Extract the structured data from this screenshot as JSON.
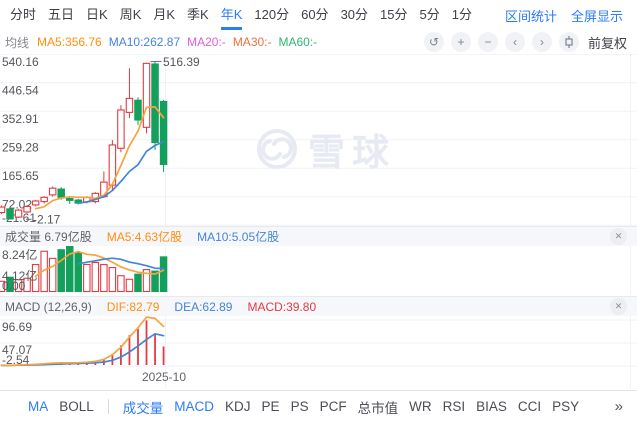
{
  "toolbar": {
    "periods": [
      "分时",
      "五日",
      "日K",
      "周K",
      "月K",
      "季K",
      "年K",
      "120分",
      "60分",
      "30分",
      "15分",
      "5分",
      "1分"
    ],
    "active_period": "年K",
    "links": [
      "区间统计",
      "全屏显示"
    ]
  },
  "legend": {
    "title": "均线",
    "items": [
      {
        "text": "MA5:356.76",
        "color": "#ff8e0e"
      },
      {
        "text": "MA10:262.87",
        "color": "#4485d6"
      },
      {
        "text": "MA20:-",
        "color": "#dc5edc"
      },
      {
        "text": "MA30:-",
        "color": "#f0703c"
      },
      {
        "text": "MA60:-",
        "color": "#2fb56e"
      }
    ],
    "controls": [
      {
        "name": "undo-icon",
        "glyph": "↺"
      },
      {
        "name": "zoom-in-icon",
        "glyph": "+"
      },
      {
        "name": "zoom-out-icon",
        "glyph": "−"
      },
      {
        "name": "pan-left-icon",
        "glyph": "‹"
      },
      {
        "name": "pan-right-icon",
        "glyph": "›"
      },
      {
        "name": "candle-style-icon",
        "glyph": "candle"
      }
    ],
    "adjust_label": "前复权"
  },
  "watermark": {
    "text": "雪球"
  },
  "icons": {
    "close": "✕"
  },
  "colors": {
    "up": "#e23b41",
    "down": "#12a05c",
    "ma5_line": "#f6a43e",
    "ma10_line": "#4485d6",
    "accent_blue": "#2b7cf7",
    "grid": "#f1f2f6",
    "axis_text": "#55565c"
  },
  "chart_data": [
    {
      "type": "candlestick",
      "period": "年K",
      "y_ticks": [
        "540.16",
        "446.54",
        "352.91",
        "259.28",
        "165.65",
        "72.02",
        "-21.61"
      ],
      "high_marker": "516.39",
      "low_marker": "-2.17",
      "candles": [
        {
          "open": 20,
          "close": 38,
          "high": 43,
          "low": 15
        },
        {
          "open": 32,
          "close": -1,
          "high": 36,
          "low": -2.17
        },
        {
          "open": 5,
          "close": 28,
          "high": 32,
          "low": 2
        },
        {
          "open": 22,
          "close": 40,
          "high": 45,
          "low": 18
        },
        {
          "open": 45,
          "close": 58,
          "high": 62,
          "low": 40
        },
        {
          "open": 56,
          "close": 70,
          "high": 74,
          "low": 50
        },
        {
          "open": 78,
          "close": 100,
          "high": 106,
          "low": 72
        },
        {
          "open": 97,
          "close": 70,
          "high": 104,
          "low": 62
        },
        {
          "open": 66,
          "close": 60,
          "high": 74,
          "low": 48
        },
        {
          "open": 61,
          "close": 51,
          "high": 65,
          "low": 46
        },
        {
          "open": 55,
          "close": 70,
          "high": 74,
          "low": 50
        },
        {
          "open": 56,
          "close": 83,
          "high": 87,
          "low": 50
        },
        {
          "open": 72,
          "close": 120,
          "high": 155,
          "low": 68
        },
        {
          "open": 110,
          "close": 242,
          "high": 258,
          "low": 94
        },
        {
          "open": 231,
          "close": 357,
          "high": 373,
          "low": 218
        },
        {
          "open": 349,
          "close": 395,
          "high": 494,
          "low": 330
        },
        {
          "open": 389,
          "close": 324,
          "high": 399,
          "low": 307
        },
        {
          "open": 300,
          "close": 510,
          "high": 512,
          "low": 280
        },
        {
          "open": 508,
          "close": 250,
          "high": 516.39,
          "low": 225
        },
        {
          "open": 385,
          "close": 178,
          "high": 390,
          "low": 153
        }
      ]
    },
    {
      "type": "bar",
      "header_items": [
        {
          "text": "成交量 6.79亿股",
          "color": "#62636a"
        },
        {
          "text": "MA5:4.63亿股",
          "color": "#ff8e0e"
        },
        {
          "text": "MA10:5.05亿股",
          "color": "#4485d6"
        }
      ],
      "y_ticks": [
        "8.24亿",
        "4.12亿",
        "0.00"
      ],
      "unit": "亿股",
      "values": [
        2.0,
        2.8,
        2.3,
        2.6,
        5.3,
        7.9,
        6.5,
        8.2,
        8.9,
        7.6,
        5.3,
        5.7,
        5.3,
        4.7,
        3.1,
        2.4,
        3.4,
        4.3,
        4.0,
        6.79
      ]
    },
    {
      "type": "macd",
      "header_items": [
        {
          "text": "MACD (12,26,9)",
          "color": "#62636a"
        },
        {
          "text": "DIF:82.79",
          "color": "#ff8e0e"
        },
        {
          "text": "DEA:62.89",
          "color": "#4485d6"
        },
        {
          "text": "MACD:39.80",
          "color": "#e23b41"
        }
      ],
      "y_ticks": [
        "96.69",
        "47.07",
        "-2.54"
      ],
      "x_axis_label": "2025-10",
      "dif": [
        -0.5,
        -1,
        0,
        0.5,
        1.5,
        2.5,
        4,
        4.5,
        4.5,
        5,
        6,
        8,
        12,
        22,
        38,
        60,
        80,
        103,
        100,
        82.79
      ],
      "dea": [
        -0.8,
        -0.9,
        -0.5,
        -0.2,
        0.2,
        0.8,
        1.5,
        2.2,
        2.8,
        3.3,
        3.9,
        4.8,
        6.5,
        10,
        17,
        28,
        41,
        55,
        67,
        62.89
      ]
    }
  ],
  "bottom_bar": {
    "items": [
      {
        "label": "MA",
        "active": true
      },
      {
        "label": "BOLL",
        "active": false,
        "divider_after": true
      },
      {
        "label": "成交量",
        "active": true
      },
      {
        "label": "MACD",
        "active": true
      },
      {
        "label": "KDJ",
        "active": false
      },
      {
        "label": "PE",
        "active": false
      },
      {
        "label": "PS",
        "active": false
      },
      {
        "label": "PCF",
        "active": false
      },
      {
        "label": "总市值",
        "active": false
      },
      {
        "label": "WR",
        "active": false
      },
      {
        "label": "RSI",
        "active": false
      },
      {
        "label": "BIAS",
        "active": false
      },
      {
        "label": "CCI",
        "active": false
      },
      {
        "label": "PSY",
        "active": false
      }
    ],
    "more_label": "»"
  }
}
